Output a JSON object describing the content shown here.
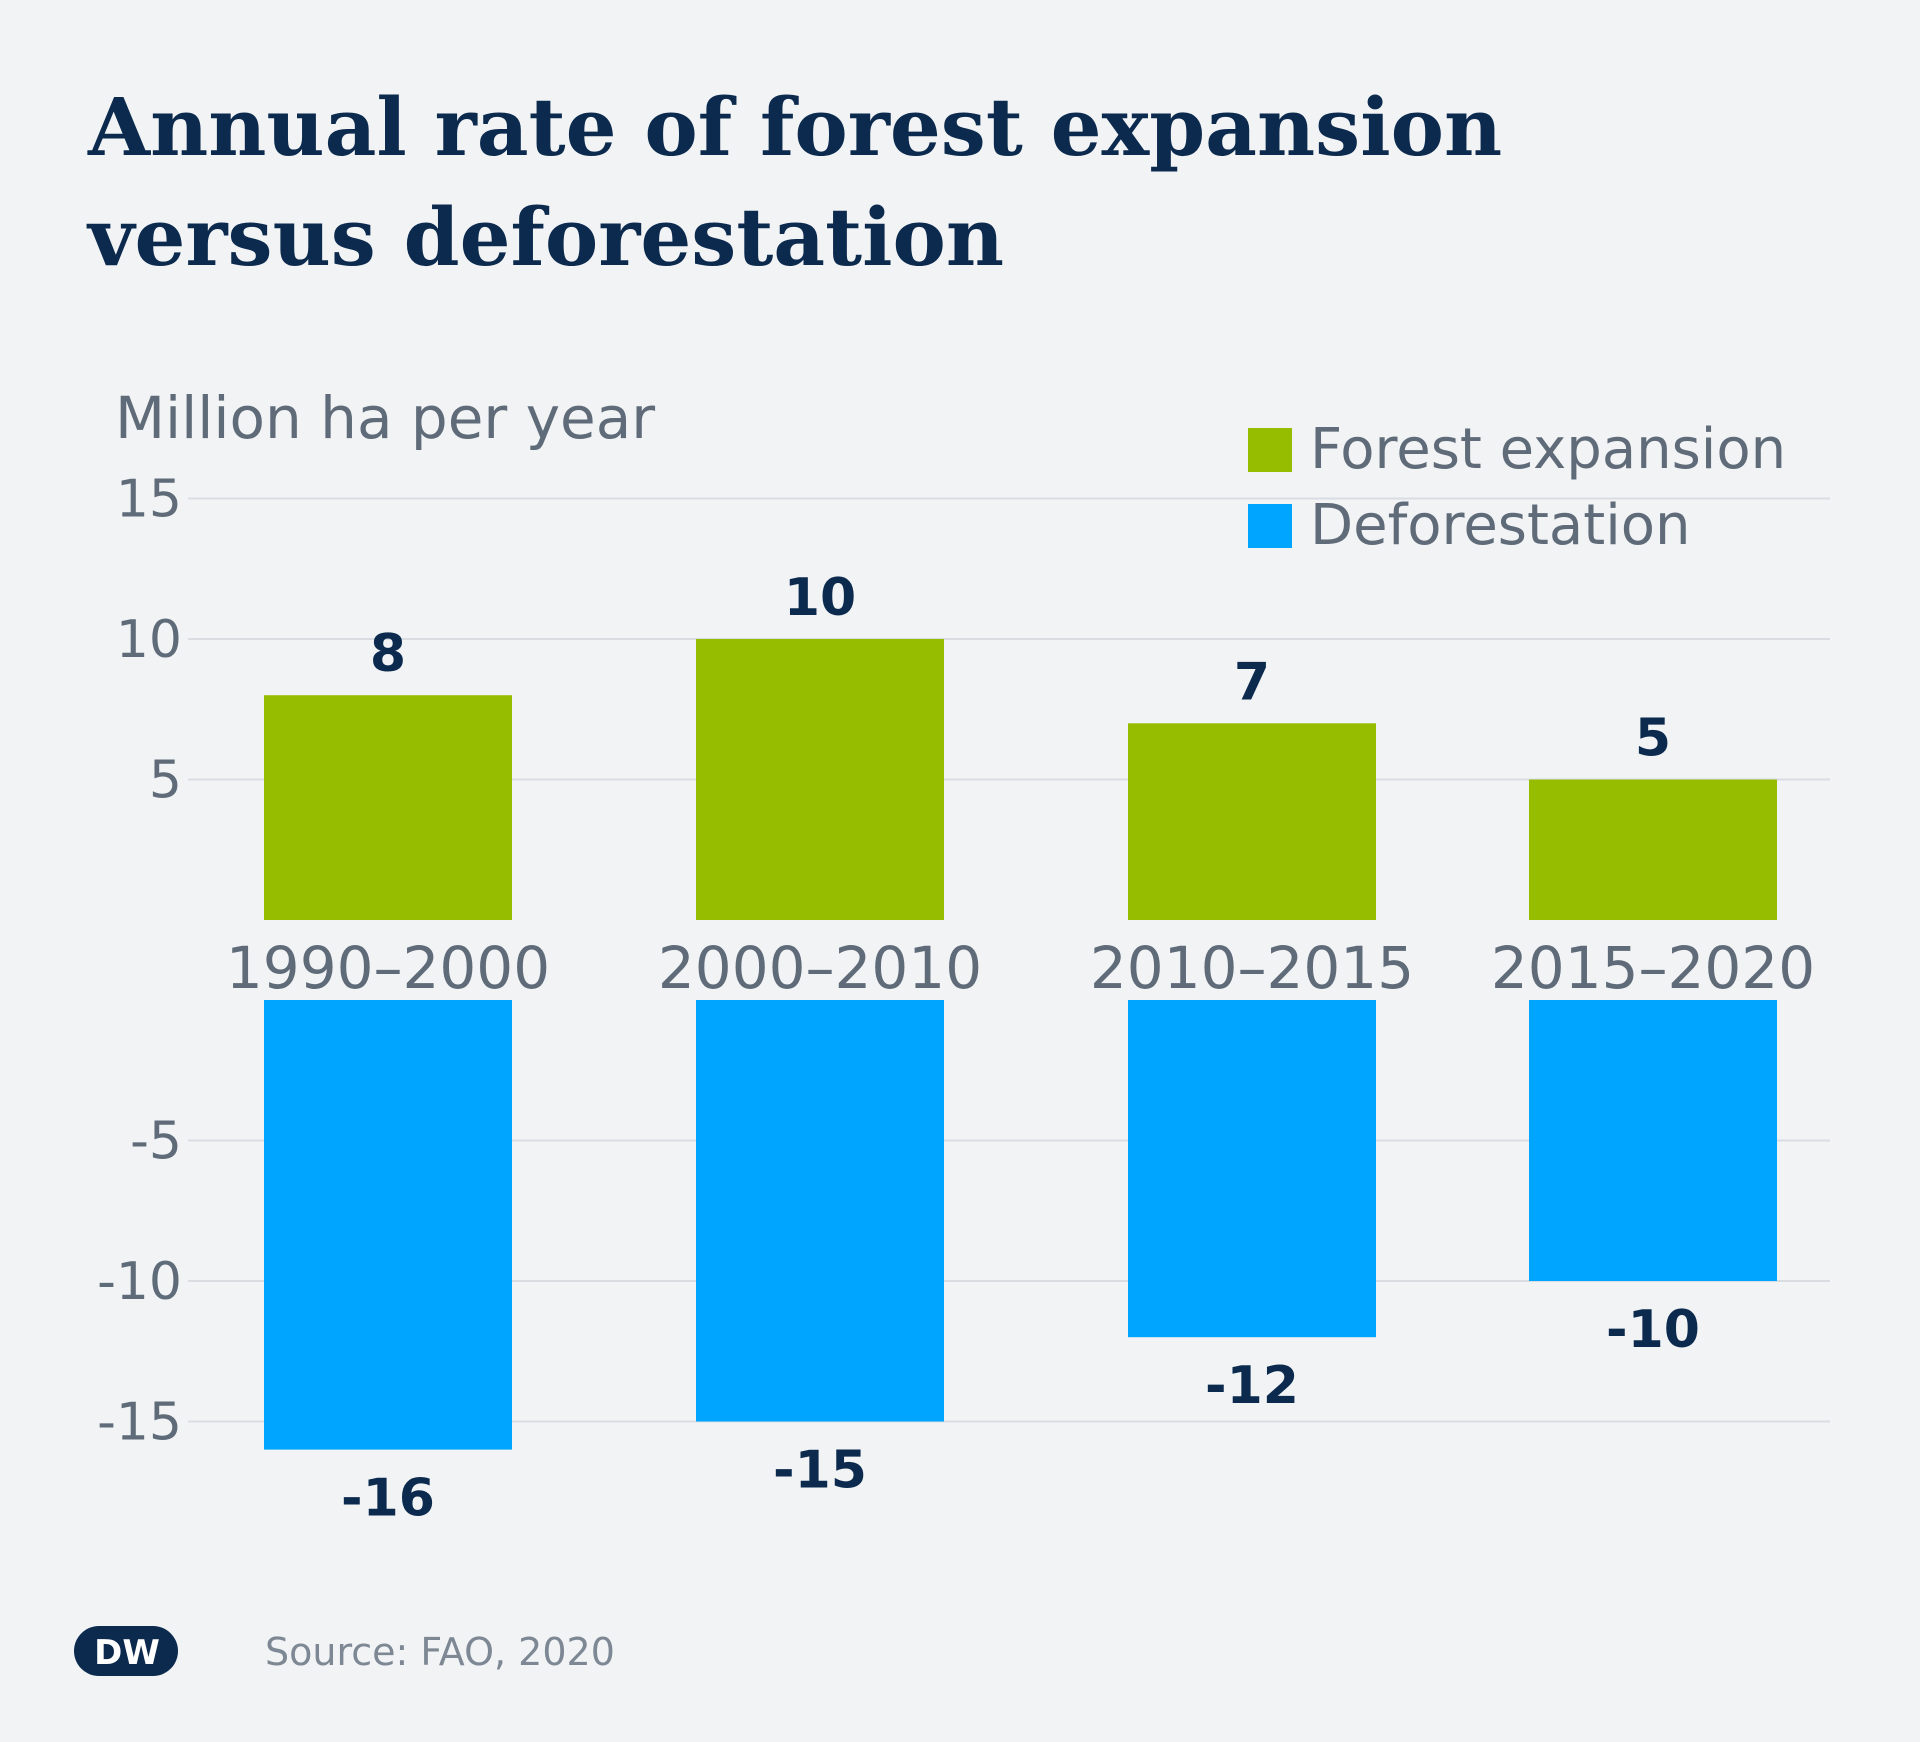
{
  "title": {
    "line1": "Annual rate of forest expansion",
    "line2": "versus deforestation"
  },
  "source": "Source: FAO, 2020",
  "logo_text": "DW",
  "colors": {
    "expansion": "#97bd00",
    "deforestation": "#00a5ff",
    "label": "#0c2a4e",
    "axis_text": "#5f6b78",
    "grid": "#d9dde2"
  },
  "chart_data": {
    "type": "bar",
    "ylabel": "Million ha per year",
    "categories": [
      "1990–2000",
      "2000–2010",
      "2010–2015",
      "2015–2020"
    ],
    "series": [
      {
        "name": "Forest expansion",
        "values": [
          8,
          10,
          7,
          5
        ],
        "labels": [
          "8",
          "10",
          "7",
          "5"
        ]
      },
      {
        "name": "Deforestation",
        "values": [
          -16,
          -15,
          -12,
          -10
        ],
        "labels": [
          "-16",
          "-15",
          "-12",
          "-10"
        ]
      }
    ],
    "yticks": [
      "15",
      "10",
      "5",
      "-5",
      "-10",
      "-15"
    ],
    "ylim": [
      -16,
      15
    ],
    "grid": true,
    "legend_position": "top-right"
  }
}
